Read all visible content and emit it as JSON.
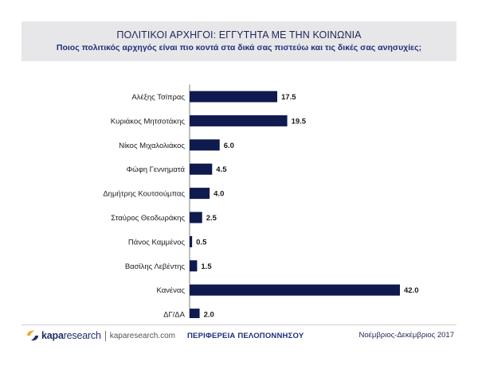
{
  "header": {
    "title": "ΠΟΛΙΤΙΚΟΙ ΑΡΧΗΓΟΙ: ΕΓΓΥΤΗΤΑ ΜΕ ΤΗΝ ΚΟΙΝΩΝΙΑ",
    "subtitle": "Ποιος πολιτικός αρχηγός είναι πιο κοντά στα δικά σας πιστεύω και τις δικές σας ανησυχίες;"
  },
  "chart_data": {
    "type": "bar",
    "orientation": "horizontal",
    "categories": [
      "Αλέξης Τσίπρας",
      "Κυριάκος Μητσοτάκης",
      "Νίκος Μιχαλολιάκος",
      "Φώφη Γεννηματά",
      "Δημήτρης Κουτσούμπας",
      "Σταύρος Θεοδωράκης",
      "Πάνος Καμμένος",
      "Βασίλης Λεβέντης",
      "Κανένας",
      "ΔΓ/ΔΑ"
    ],
    "values": [
      17.5,
      19.5,
      6.0,
      4.5,
      4.0,
      2.5,
      0.5,
      1.5,
      42.0,
      2.0
    ],
    "value_labels": [
      "17.5",
      "19.5",
      "6.0",
      "4.5",
      "4.0",
      "2.5",
      "0.5",
      "1.5",
      "42.0",
      "2.0"
    ],
    "xlim": [
      0,
      42
    ],
    "bar_color": "#0f1a4f",
    "axis_color": "#7f7f7f"
  },
  "footer": {
    "logo_word1": "kapa",
    "logo_word2": "research",
    "logo_url": "kaparesearch.com",
    "region": "ΠΕΡΙΦΕΡΕΙΑ ΠΕΛΟΠΟΝΝΗΣΟΥ",
    "date": "Νοέμβριος-Δεκέμβριος 2017",
    "logo_colors": [
      "#f6a623",
      "#1f2f6b"
    ]
  }
}
